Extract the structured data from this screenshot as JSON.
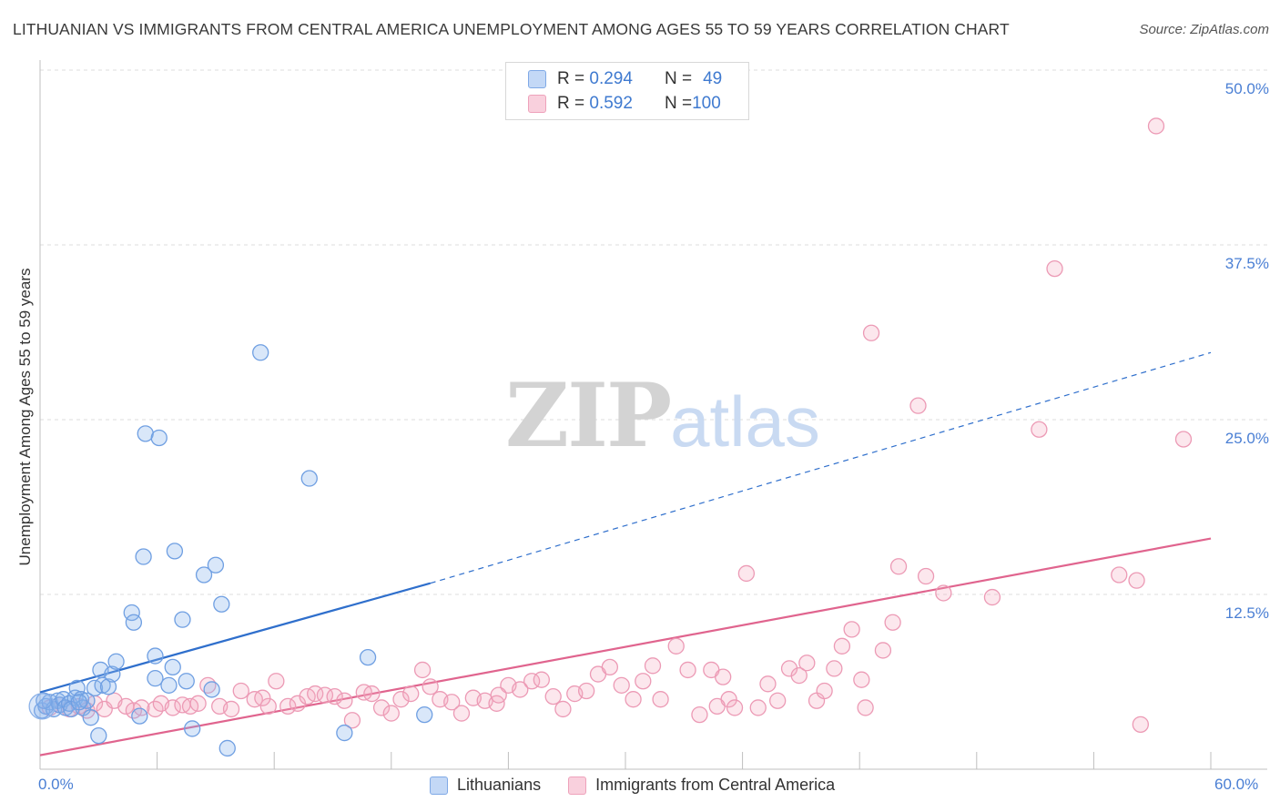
{
  "title": "LITHUANIAN VS IMMIGRANTS FROM CENTRAL AMERICA UNEMPLOYMENT AMONG AGES 55 TO 59 YEARS CORRELATION CHART",
  "source": "Source: ZipAtlas.com",
  "watermark": {
    "zip": "ZIP",
    "atlas": "atlas"
  },
  "legend_top": [
    {
      "r_label": "R = ",
      "r_value": "0.294",
      "n_label": "N = ",
      "n_value": "49"
    },
    {
      "r_label": "R = ",
      "r_value": "0.592",
      "n_label": "N = ",
      "n_value": "100"
    }
  ],
  "chart_data": {
    "type": "scatter",
    "title": "LITHUANIAN VS IMMIGRANTS FROM CENTRAL AMERICA UNEMPLOYMENT AMONG AGES 55 TO 59 YEARS CORRELATION CHART",
    "xlabel": "",
    "ylabel": "Unemployment Among Ages 55 to 59 years",
    "xlim": [
      0,
      60
    ],
    "ylim": [
      0,
      50
    ],
    "x_tick_labels": [
      "0.0%",
      "60.0%"
    ],
    "y_ticks": [
      12.5,
      25.0,
      37.5,
      50.0
    ],
    "y_tick_labels": [
      "12.5%",
      "25.0%",
      "37.5%",
      "50.0%"
    ],
    "grid": true,
    "legend_position": "bottom",
    "series": [
      {
        "name": "Lithuanians",
        "color": "#8ab4ec",
        "line_color": "#2f6fcc",
        "r": 0.294,
        "n": 49,
        "trend": {
          "x0": 0,
          "y0": 5.5,
          "x1_solid": 20,
          "y1_solid": 13.3,
          "x1": 60,
          "y1": 29.8
        },
        "points": [
          [
            0.1,
            4.2
          ],
          [
            0.3,
            4.5
          ],
          [
            0.5,
            4.8
          ],
          [
            0.7,
            4.3
          ],
          [
            0.9,
            4.9
          ],
          [
            1.0,
            4.6
          ],
          [
            1.2,
            5.0
          ],
          [
            1.3,
            4.4
          ],
          [
            1.5,
            4.7
          ],
          [
            1.8,
            5.1
          ],
          [
            1.9,
            5.8
          ],
          [
            2.1,
            5.0
          ],
          [
            2.2,
            4.4
          ],
          [
            2.4,
            4.9
          ],
          [
            2.6,
            3.7
          ],
          [
            2.8,
            5.8
          ],
          [
            3.0,
            2.4
          ],
          [
            3.1,
            7.1
          ],
          [
            3.2,
            6.0
          ],
          [
            3.5,
            5.9
          ],
          [
            3.7,
            6.8
          ],
          [
            3.9,
            7.7
          ],
          [
            4.7,
            11.2
          ],
          [
            4.8,
            10.5
          ],
          [
            5.1,
            3.8
          ],
          [
            5.3,
            15.2
          ],
          [
            5.4,
            24.0
          ],
          [
            5.9,
            8.1
          ],
          [
            5.9,
            6.5
          ],
          [
            6.1,
            23.7
          ],
          [
            6.6,
            6.0
          ],
          [
            6.8,
            7.3
          ],
          [
            6.9,
            15.6
          ],
          [
            7.3,
            10.7
          ],
          [
            7.5,
            6.3
          ],
          [
            7.8,
            2.9
          ],
          [
            8.4,
            13.9
          ],
          [
            8.8,
            5.7
          ],
          [
            9.0,
            14.6
          ],
          [
            9.3,
            11.8
          ],
          [
            9.6,
            1.5
          ],
          [
            11.3,
            29.8
          ],
          [
            13.8,
            20.8
          ],
          [
            15.6,
            2.6
          ],
          [
            16.8,
            8.0
          ],
          [
            19.7,
            3.9
          ],
          [
            0.2,
            4.9
          ],
          [
            1.6,
            4.3
          ],
          [
            2.0,
            4.8
          ]
        ]
      },
      {
        "name": "Immigrants from Central America",
        "color": "#f4a9c0",
        "line_color": "#e0648e",
        "r": 0.592,
        "n": 100,
        "trend": {
          "x0": 0,
          "y0": 1.0,
          "x1": 60,
          "y1": 16.5
        },
        "points": [
          [
            0.5,
            4.4
          ],
          [
            1.0,
            4.6
          ],
          [
            1.5,
            4.3
          ],
          [
            2.0,
            4.5
          ],
          [
            2.4,
            4.2
          ],
          [
            2.8,
            4.7
          ],
          [
            3.3,
            4.3
          ],
          [
            3.8,
            4.9
          ],
          [
            4.4,
            4.5
          ],
          [
            4.8,
            4.2
          ],
          [
            5.2,
            4.4
          ],
          [
            5.9,
            4.3
          ],
          [
            6.2,
            4.7
          ],
          [
            6.8,
            4.4
          ],
          [
            7.3,
            4.6
          ],
          [
            7.7,
            4.5
          ],
          [
            8.1,
            4.7
          ],
          [
            8.6,
            6.0
          ],
          [
            9.2,
            4.5
          ],
          [
            9.8,
            4.3
          ],
          [
            10.3,
            5.6
          ],
          [
            11.0,
            5.0
          ],
          [
            11.7,
            4.5
          ],
          [
            12.1,
            6.3
          ],
          [
            12.7,
            4.5
          ],
          [
            13.2,
            4.7
          ],
          [
            13.7,
            5.2
          ],
          [
            14.1,
            5.4
          ],
          [
            14.6,
            5.3
          ],
          [
            15.1,
            5.2
          ],
          [
            15.6,
            4.9
          ],
          [
            16.0,
            3.5
          ],
          [
            16.6,
            5.5
          ],
          [
            17.0,
            5.4
          ],
          [
            17.5,
            4.4
          ],
          [
            18.0,
            4.0
          ],
          [
            18.5,
            5.0
          ],
          [
            19.0,
            5.4
          ],
          [
            19.6,
            7.1
          ],
          [
            20.0,
            5.9
          ],
          [
            20.5,
            5.0
          ],
          [
            21.1,
            4.8
          ],
          [
            21.6,
            4.0
          ],
          [
            22.2,
            5.1
          ],
          [
            22.8,
            4.9
          ],
          [
            23.4,
            4.7
          ],
          [
            24.0,
            6.0
          ],
          [
            24.6,
            5.7
          ],
          [
            25.2,
            6.3
          ],
          [
            25.7,
            6.4
          ],
          [
            26.3,
            5.2
          ],
          [
            26.8,
            4.3
          ],
          [
            27.4,
            5.4
          ],
          [
            28.0,
            5.6
          ],
          [
            28.6,
            6.8
          ],
          [
            29.2,
            7.3
          ],
          [
            29.8,
            6.0
          ],
          [
            30.4,
            5.0
          ],
          [
            30.9,
            6.3
          ],
          [
            31.4,
            7.4
          ],
          [
            31.8,
            5.0
          ],
          [
            32.6,
            8.8
          ],
          [
            33.2,
            7.1
          ],
          [
            33.8,
            3.9
          ],
          [
            34.4,
            7.1
          ],
          [
            35.0,
            6.6
          ],
          [
            35.3,
            5.0
          ],
          [
            35.6,
            4.4
          ],
          [
            36.2,
            14.0
          ],
          [
            36.8,
            4.4
          ],
          [
            37.3,
            6.1
          ],
          [
            37.8,
            4.9
          ],
          [
            38.4,
            7.2
          ],
          [
            38.9,
            6.7
          ],
          [
            39.3,
            7.6
          ],
          [
            39.8,
            4.9
          ],
          [
            40.2,
            5.6
          ],
          [
            40.7,
            7.2
          ],
          [
            41.1,
            8.8
          ],
          [
            41.6,
            10.0
          ],
          [
            42.1,
            6.4
          ],
          [
            42.3,
            4.4
          ],
          [
            42.6,
            31.2
          ],
          [
            43.2,
            8.5
          ],
          [
            43.7,
            10.5
          ],
          [
            44.0,
            14.5
          ],
          [
            45.0,
            26.0
          ],
          [
            45.4,
            13.8
          ],
          [
            46.3,
            12.6
          ],
          [
            48.8,
            12.3
          ],
          [
            51.2,
            24.3
          ],
          [
            52.0,
            35.8
          ],
          [
            55.3,
            13.9
          ],
          [
            56.2,
            13.5
          ],
          [
            56.4,
            3.2
          ],
          [
            57.2,
            46.0
          ],
          [
            58.6,
            23.6
          ],
          [
            34.7,
            4.5
          ],
          [
            23.5,
            5.3
          ],
          [
            11.4,
            5.1
          ]
        ]
      }
    ]
  }
}
